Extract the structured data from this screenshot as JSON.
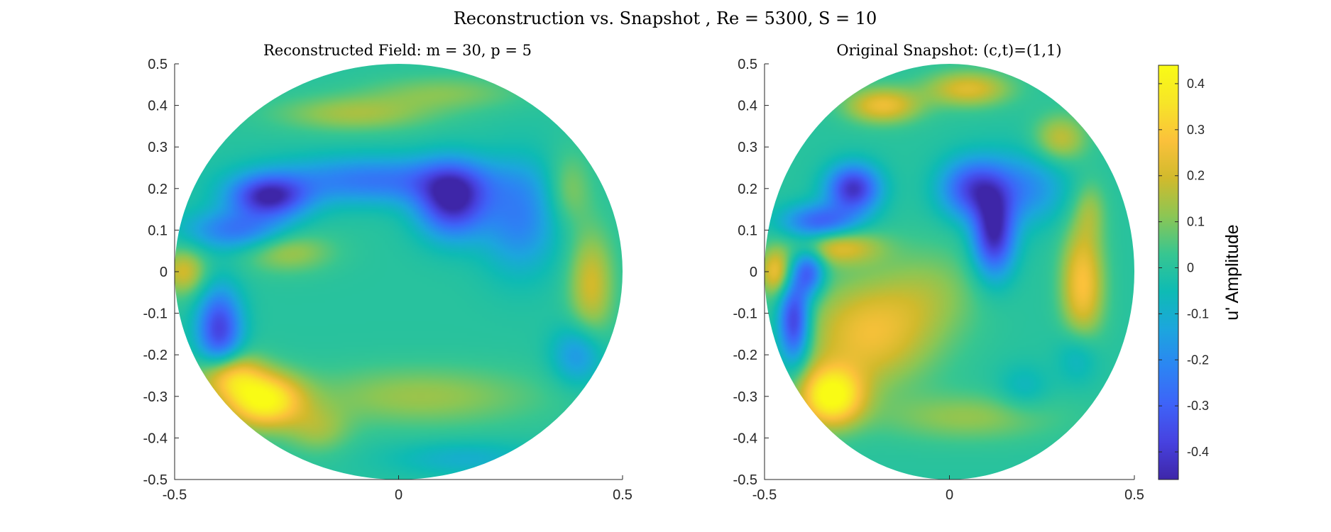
{
  "figure": {
    "suptitle": "Reconstruction vs. Snapshot , Re = 5300, S = 10"
  },
  "chart_data": [
    {
      "type": "heatmap",
      "title": "Reconstructed Field: m = 30, p = 5",
      "xlabel": "",
      "ylabel": "",
      "xlim": [
        -0.5,
        0.5
      ],
      "ylim": [
        -0.5,
        0.5
      ],
      "xticks": [
        -0.5,
        0,
        0.5
      ],
      "xtick_labels": [
        "-0.5",
        "0",
        "0.5"
      ],
      "yticks": [
        -0.5,
        -0.4,
        -0.3,
        -0.2,
        -0.1,
        0,
        0.1,
        0.2,
        0.3,
        0.4,
        0.5
      ],
      "ytick_labels": [
        "-0.5",
        "-0.4",
        "-0.3",
        "-0.2",
        "-0.1",
        "0",
        "0.1",
        "0.2",
        "0.3",
        "0.4",
        "0.5"
      ],
      "domain": "disk, radius 0.5",
      "features": [
        {
          "x": -0.3,
          "y": -0.31,
          "sx": 0.06,
          "sy": 0.045,
          "value": 0.42
        },
        {
          "x": -0.38,
          "y": -0.25,
          "sx": 0.05,
          "sy": 0.04,
          "value": 0.3
        },
        {
          "x": -0.4,
          "y": -0.14,
          "sx": 0.035,
          "sy": 0.07,
          "value": -0.38
        },
        {
          "x": -0.29,
          "y": 0.18,
          "sx": 0.06,
          "sy": 0.035,
          "value": -0.42
        },
        {
          "x": -0.36,
          "y": 0.1,
          "sx": 0.08,
          "sy": 0.035,
          "value": -0.25
        },
        {
          "x": 0.12,
          "y": 0.17,
          "sx": 0.055,
          "sy": 0.06,
          "value": -0.44
        },
        {
          "x": -0.05,
          "y": 0.22,
          "sx": 0.17,
          "sy": 0.04,
          "value": -0.25
        },
        {
          "x": 0.27,
          "y": 0.13,
          "sx": 0.06,
          "sy": 0.09,
          "value": -0.22
        },
        {
          "x": -0.48,
          "y": 0.0,
          "sx": 0.035,
          "sy": 0.04,
          "value": 0.2
        },
        {
          "x": -0.25,
          "y": 0.05,
          "sx": 0.07,
          "sy": 0.035,
          "value": 0.15
        },
        {
          "x": -0.1,
          "y": 0.38,
          "sx": 0.12,
          "sy": 0.03,
          "value": 0.14
        },
        {
          "x": 0.1,
          "y": 0.43,
          "sx": 0.12,
          "sy": 0.03,
          "value": 0.1
        },
        {
          "x": 0.43,
          "y": -0.03,
          "sx": 0.035,
          "sy": 0.09,
          "value": 0.2
        },
        {
          "x": 0.38,
          "y": 0.2,
          "sx": 0.035,
          "sy": 0.06,
          "value": 0.12
        },
        {
          "x": 0.4,
          "y": -0.2,
          "sx": 0.04,
          "sy": 0.05,
          "value": -0.18
        },
        {
          "x": 0.05,
          "y": -0.3,
          "sx": 0.18,
          "sy": 0.05,
          "value": 0.13
        },
        {
          "x": 0.15,
          "y": -0.45,
          "sx": 0.12,
          "sy": 0.03,
          "value": -0.1
        },
        {
          "x": -0.18,
          "y": -0.38,
          "sx": 0.05,
          "sy": 0.04,
          "value": 0.12
        }
      ]
    },
    {
      "type": "heatmap",
      "title": "Original Snapshot: (c,t)=(1,1)",
      "xlabel": "",
      "ylabel": "",
      "xlim": [
        -0.5,
        0.5
      ],
      "ylim": [
        -0.5,
        0.5
      ],
      "xticks": [
        -0.5,
        0,
        0.5
      ],
      "xtick_labels": [
        "-0.5",
        "0",
        "0.5"
      ],
      "yticks": [
        -0.5,
        -0.4,
        -0.3,
        -0.2,
        -0.1,
        0,
        0.1,
        0.2,
        0.3,
        0.4,
        0.5
      ],
      "ytick_labels": [
        "-0.5",
        "-0.4",
        "-0.3",
        "-0.2",
        "-0.1",
        "0",
        "0.1",
        "0.2",
        "0.3",
        "0.4",
        "0.5"
      ],
      "domain": "disk, radius 0.5",
      "features": [
        {
          "x": -0.32,
          "y": -0.3,
          "sx": 0.06,
          "sy": 0.05,
          "value": 0.44
        },
        {
          "x": -0.22,
          "y": -0.15,
          "sx": 0.12,
          "sy": 0.09,
          "value": 0.25
        },
        {
          "x": -0.42,
          "y": -0.12,
          "sx": 0.03,
          "sy": 0.07,
          "value": -0.42
        },
        {
          "x": -0.38,
          "y": 0.0,
          "sx": 0.03,
          "sy": 0.04,
          "value": -0.3
        },
        {
          "x": -0.26,
          "y": 0.2,
          "sx": 0.05,
          "sy": 0.04,
          "value": -0.42
        },
        {
          "x": -0.35,
          "y": 0.12,
          "sx": 0.07,
          "sy": 0.03,
          "value": -0.3
        },
        {
          "x": 0.12,
          "y": 0.09,
          "sx": 0.04,
          "sy": 0.07,
          "value": -0.44
        },
        {
          "x": 0.06,
          "y": 0.2,
          "sx": 0.06,
          "sy": 0.05,
          "value": -0.33
        },
        {
          "x": 0.2,
          "y": 0.2,
          "sx": 0.08,
          "sy": 0.06,
          "value": -0.2
        },
        {
          "x": -0.47,
          "y": 0.0,
          "sx": 0.03,
          "sy": 0.04,
          "value": 0.25
        },
        {
          "x": -0.3,
          "y": 0.06,
          "sx": 0.08,
          "sy": 0.03,
          "value": 0.22
        },
        {
          "x": -0.18,
          "y": 0.4,
          "sx": 0.07,
          "sy": 0.03,
          "value": 0.25
        },
        {
          "x": 0.05,
          "y": 0.44,
          "sx": 0.08,
          "sy": 0.03,
          "value": 0.22
        },
        {
          "x": 0.36,
          "y": -0.03,
          "sx": 0.04,
          "sy": 0.1,
          "value": 0.28
        },
        {
          "x": 0.3,
          "y": 0.32,
          "sx": 0.05,
          "sy": 0.04,
          "value": 0.18
        },
        {
          "x": 0.38,
          "y": 0.15,
          "sx": 0.03,
          "sy": 0.05,
          "value": 0.1
        },
        {
          "x": 0.35,
          "y": -0.2,
          "sx": 0.04,
          "sy": 0.05,
          "value": -0.12
        },
        {
          "x": 0.05,
          "y": -0.35,
          "sx": 0.16,
          "sy": 0.04,
          "value": 0.12
        },
        {
          "x": -0.05,
          "y": -0.05,
          "sx": 0.1,
          "sy": 0.08,
          "value": 0.1
        },
        {
          "x": 0.2,
          "y": -0.28,
          "sx": 0.05,
          "sy": 0.04,
          "value": -0.08
        }
      ]
    }
  ],
  "colorbar": {
    "label": "u' Amplitude",
    "limits": [
      -0.46,
      0.44
    ],
    "ticks": [
      -0.4,
      -0.3,
      -0.2,
      -0.1,
      0,
      0.1,
      0.2,
      0.3,
      0.4
    ],
    "tick_labels": [
      "-0.4",
      "-0.3",
      "-0.2",
      "-0.1",
      "0",
      "0.1",
      "0.2",
      "0.3",
      "0.4"
    ],
    "colormap": "parula",
    "stops": [
      "#3e26a8",
      "#4742e0",
      "#3e63f8",
      "#2c85f3",
      "#1ca6dd",
      "#0ebbb4",
      "#38c690",
      "#8cc654",
      "#d1ba2c",
      "#fbc13b",
      "#f7e528",
      "#f9fb15"
    ]
  }
}
